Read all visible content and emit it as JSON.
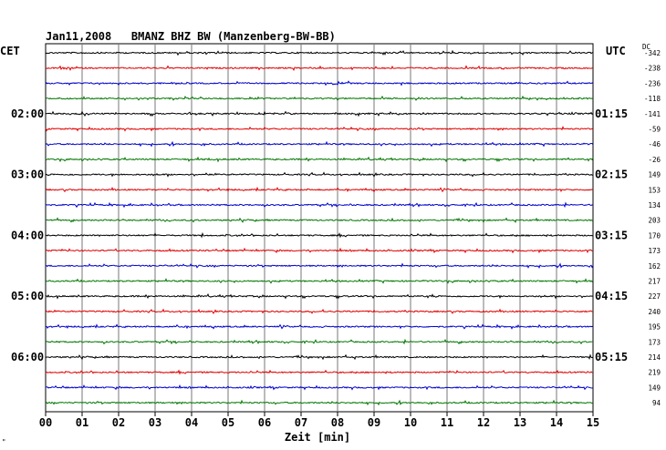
{
  "header": {
    "title": "Jan11,2008   BMANZ BHZ BW (Manzenberg-BW-BB)",
    "left_tz": "CET",
    "right_tz": "UTC",
    "dc_label": "DC"
  },
  "chart_data": {
    "type": "line",
    "title": "Jan11,2008   BMANZ BHZ BW (Manzenberg-BW-BB)",
    "xlabel": "Zeit [min]",
    "x_ticks": [
      "00",
      "01",
      "02",
      "03",
      "04",
      "05",
      "06",
      "07",
      "08",
      "09",
      "10",
      "11",
      "12",
      "13",
      "14",
      "15"
    ],
    "xlim": [
      0,
      15
    ],
    "grid": true,
    "trace_colors": [
      "#000000",
      "#e00000",
      "#0000cc",
      "#007700"
    ],
    "left_time_labels": [
      {
        "trace_index": 4,
        "label": "02:00"
      },
      {
        "trace_index": 8,
        "label": "03:00"
      },
      {
        "trace_index": 12,
        "label": "04:00"
      },
      {
        "trace_index": 16,
        "label": "05:00"
      },
      {
        "trace_index": 20,
        "label": "06:00"
      }
    ],
    "right_time_labels": [
      {
        "trace_index": 4,
        "label": "01:15"
      },
      {
        "trace_index": 8,
        "label": "02:15"
      },
      {
        "trace_index": 12,
        "label": "03:15"
      },
      {
        "trace_index": 16,
        "label": "04:15"
      },
      {
        "trace_index": 20,
        "label": "05:15"
      }
    ],
    "dc_offsets": [
      "-342",
      "-238",
      "-236",
      "-118",
      "-141",
      "-59",
      "-46",
      "-26",
      "149",
      "153",
      "134",
      "203",
      "170",
      "173",
      "162",
      "217",
      "227",
      "240",
      "195",
      "173",
      "214",
      "219",
      "149",
      "94"
    ]
  },
  "corner_mark": "\""
}
